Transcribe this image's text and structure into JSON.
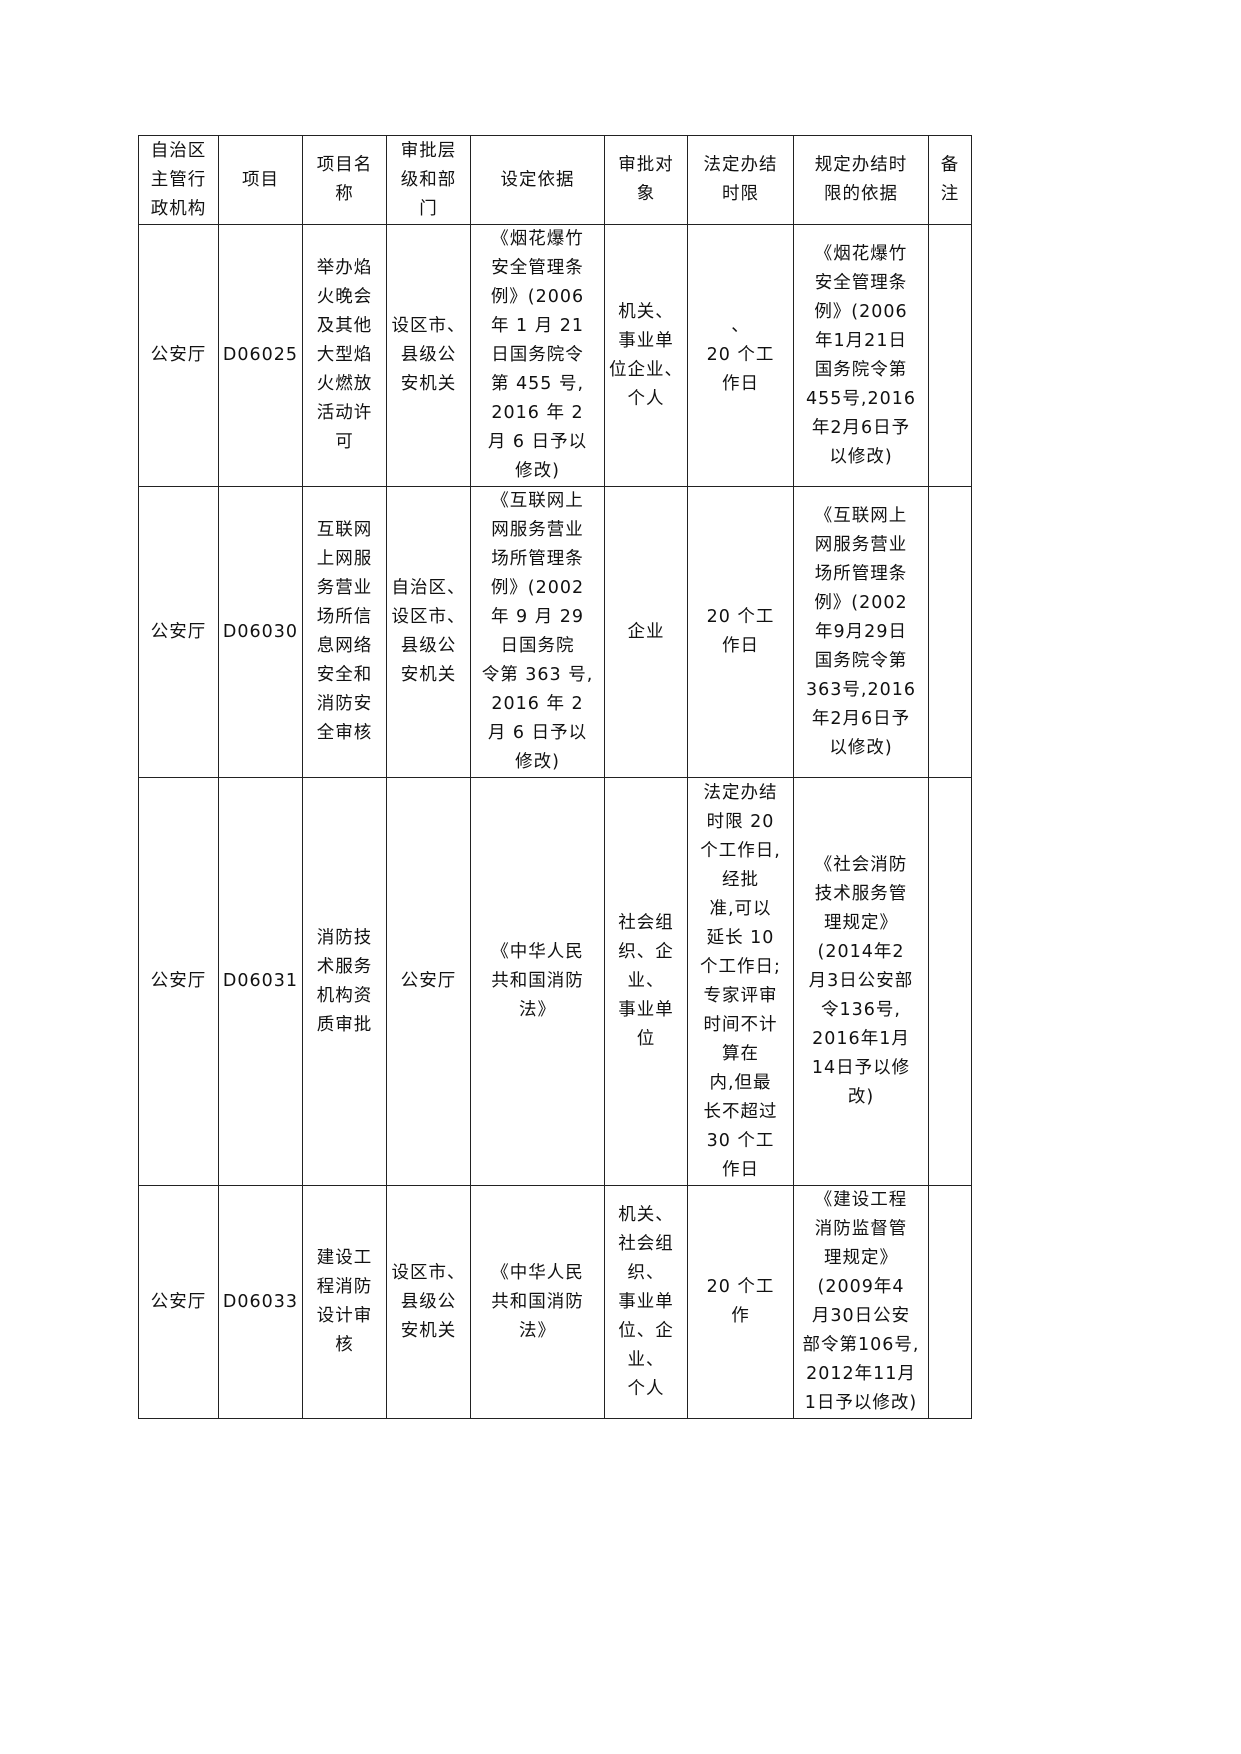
{
  "headers": [
    "自治区\n主管行\n政机构",
    "项目",
    "项目名\n称",
    "审批层\n级和部\n门",
    "设定依据",
    "审批对\n象",
    "法定办结\n时限",
    "规定办结时\n限的依据",
    "备\n注"
  ],
  "rows": [
    [
      "公安厅",
      "D06025",
      "举办焰\n火晚会\n及其他\n大型焰\n火燃放\n活动许\n可",
      "设区市、\n县级公\n安机关",
      "《烟花爆竹\n安全管理条\n例》(2006\n年 1 月 21\n日国务院令\n第 455 号,\n2016 年 2\n月 6 日予以\n修改)",
      "机关、\n事业单\n位企业、\n个人",
      "、\n20 个工\n作日",
      "《烟花爆竹\n安全管理条\n例》(2006\n年1月21日\n国务院令第\n455号,2016\n年2月6日予\n以修改)",
      ""
    ],
    [
      "公安厅",
      "D06030",
      "互联网\n上网服\n务营业\n场所信\n息网络\n安全和\n消防安\n全审核",
      "自治区、\n设区市、\n县级公\n安机关",
      "《互联网上\n网服务营业\n场所管理条\n例》(2002\n年 9 月 29\n日国务院\n令第 363 号,\n2016 年 2\n月 6 日予以\n修改)",
      "企业",
      "20 个工\n作日",
      "《互联网上\n网服务营业\n场所管理条\n例》(2002\n年9月29日\n国务院令第\n363号,2016\n年2月6日予\n以修改)",
      ""
    ],
    [
      "公安厅",
      "D06031",
      "消防技\n术服务\n机构资\n质审批",
      "公安厅",
      "《中华人民\n共和国消防\n法》",
      "社会组\n织、企\n业、\n事业单\n位",
      "法定办结\n时限 20\n个工作日,\n经批\n准,可以\n延长 10\n个工作日;\n专家评审\n时间不计\n算在\n内,但最\n长不超过\n30 个工\n作日",
      "《社会消防\n技术服务管\n理规定》\n(2014年2\n月3日公安部\n令136号,\n2016年1月\n14日予以修\n改)",
      ""
    ],
    [
      "公安厅",
      "D06033",
      "建设工\n程消防\n设计审\n核",
      "设区市、\n县级公\n安机关",
      "《中华人民\n共和国消防\n法》",
      "机关、\n社会组\n织、\n事业单\n位、企\n业、\n个人",
      "20 个工\n作",
      "《建设工程\n消防监督管\n理规定》\n(2009年4\n月30日公安\n部令第106号,\n2012年11月\n1日予以修改)",
      ""
    ]
  ]
}
